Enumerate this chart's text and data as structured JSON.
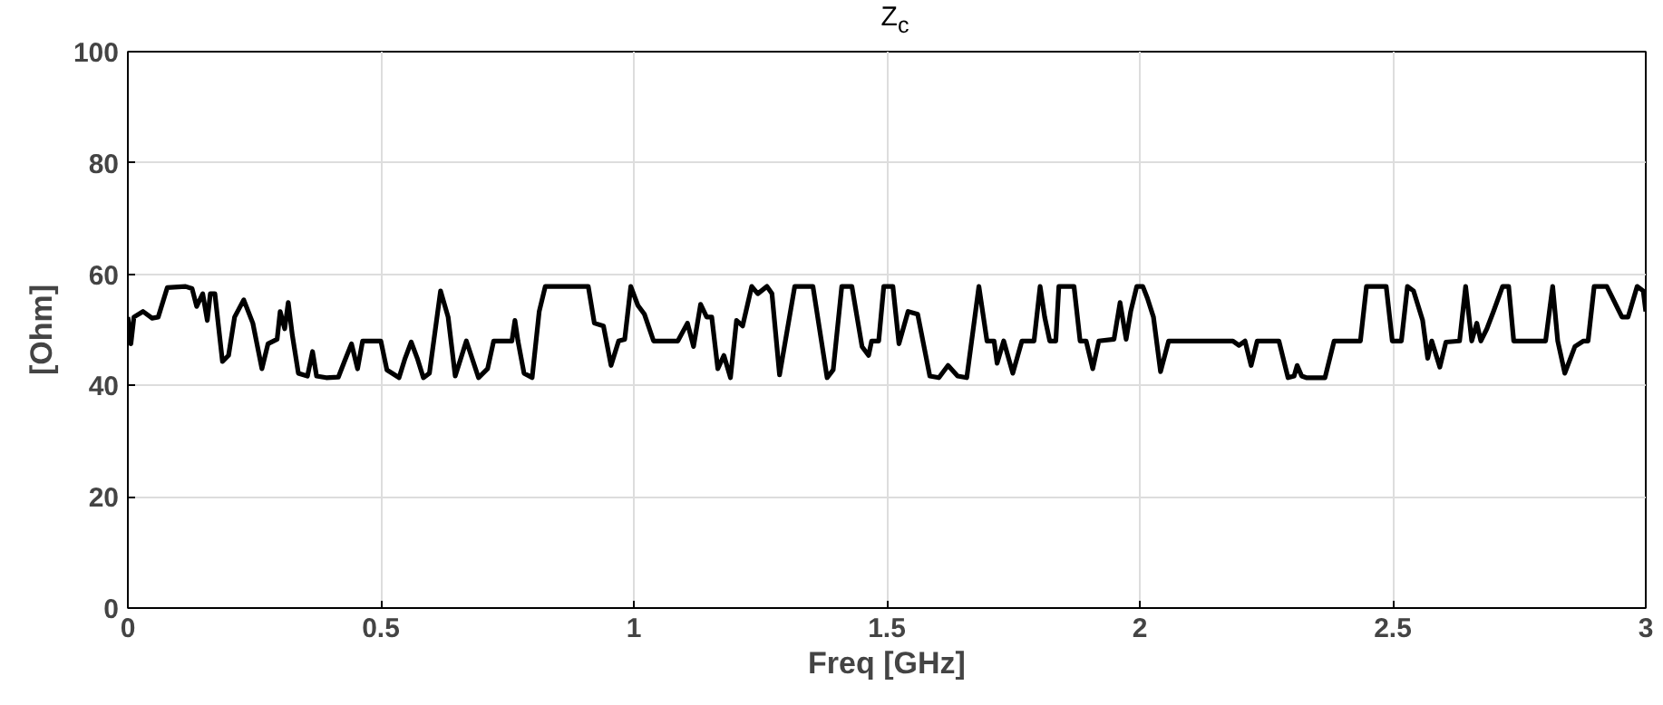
{
  "chart_data": {
    "type": "line",
    "title": "Z$_{c}$",
    "xlabel": "Freq [GHz]",
    "ylabel": "[Ohm]",
    "xlim": [
      0,
      3
    ],
    "ylim": [
      0,
      100
    ],
    "xticks": [
      0,
      0.5,
      1,
      1.5,
      2,
      2.5,
      3
    ],
    "yticks": [
      0,
      20,
      40,
      60,
      80,
      100
    ],
    "grid": true,
    "marker": "none",
    "line_style": "solid",
    "series": [
      {
        "color": "#000000",
        "x": [
          0,
          0.006,
          0.012,
          0.03,
          0.048,
          0.06,
          0.078,
          0.114,
          0.127,
          0.136,
          0.148,
          0.157,
          0.163,
          0.172,
          0.187,
          0.199,
          0.211,
          0.229,
          0.247,
          0.265,
          0.277,
          0.295,
          0.301,
          0.31,
          0.317,
          0.325,
          0.337,
          0.355,
          0.365,
          0.373,
          0.392,
          0.416,
          0.428,
          0.442,
          0.454,
          0.464,
          0.5,
          0.512,
          0.536,
          0.548,
          0.56,
          0.572,
          0.584,
          0.596,
          0.618,
          0.633,
          0.647,
          0.669,
          0.693,
          0.711,
          0.723,
          0.759,
          0.765,
          0.771,
          0.783,
          0.799,
          0.813,
          0.825,
          0.91,
          0.922,
          0.94,
          0.955,
          0.97,
          0.982,
          0.994,
          1.008,
          1.021,
          1.039,
          1.087,
          1.106,
          1.118,
          1.132,
          1.144,
          1.154,
          1.166,
          1.178,
          1.191,
          1.203,
          1.215,
          1.233,
          1.245,
          1.263,
          1.273,
          1.288,
          1.318,
          1.354,
          1.382,
          1.394,
          1.411,
          1.431,
          1.451,
          1.464,
          1.47,
          1.484,
          1.494,
          1.512,
          1.524,
          1.542,
          1.561,
          1.585,
          1.603,
          1.621,
          1.64,
          1.658,
          1.682,
          1.698,
          1.712,
          1.718,
          1.731,
          1.749,
          1.767,
          1.791,
          1.803,
          1.812,
          1.822,
          1.834,
          1.84,
          1.87,
          1.882,
          1.894,
          1.907,
          1.919,
          1.949,
          1.961,
          1.973,
          1.982,
          1.994,
          2.006,
          2.015,
          2.027,
          2.041,
          2.057,
          2.184,
          2.196,
          2.208,
          2.22,
          2.232,
          2.275,
          2.293,
          2.305,
          2.311,
          2.32,
          2.329,
          2.366,
          2.384,
          2.436,
          2.448,
          2.487,
          2.499,
          2.517,
          2.529,
          2.541,
          2.559,
          2.569,
          2.577,
          2.593,
          2.605,
          2.632,
          2.644,
          2.656,
          2.666,
          2.674,
          2.686,
          2.699,
          2.717,
          2.729,
          2.739,
          2.802,
          2.816,
          2.826,
          2.84,
          2.86,
          2.877,
          2.886,
          2.898,
          2.923,
          2.953,
          2.965,
          2.983,
          2.995,
          3.0
        ],
        "values": [
          52.3,
          47.5,
          52.3,
          53.3,
          52.1,
          52.3,
          57.6,
          57.8,
          57.4,
          54.2,
          56.5,
          51.7,
          56.5,
          56.5,
          44.3,
          45.4,
          52.3,
          55.4,
          51.2,
          43.0,
          47.5,
          48.3,
          53.3,
          50.2,
          54.9,
          49.1,
          42.2,
          41.7,
          46.1,
          41.7,
          41.4,
          41.5,
          44.3,
          47.5,
          43.0,
          48.0,
          48.0,
          42.8,
          41.4,
          44.9,
          47.8,
          44.9,
          41.4,
          42.2,
          57.0,
          52.3,
          41.7,
          48.0,
          41.4,
          43.0,
          48.0,
          48.0,
          51.7,
          48.0,
          42.2,
          41.4,
          53.3,
          57.8,
          57.8,
          51.2,
          50.7,
          43.6,
          48.0,
          48.3,
          57.8,
          54.4,
          52.8,
          48.0,
          48.0,
          51.2,
          47.0,
          54.6,
          52.3,
          52.3,
          43.0,
          45.4,
          41.4,
          51.7,
          50.7,
          57.8,
          56.5,
          57.8,
          56.5,
          41.9,
          57.8,
          57.8,
          41.4,
          42.8,
          57.8,
          57.8,
          47.0,
          45.4,
          48.0,
          48.0,
          57.8,
          57.8,
          47.5,
          53.3,
          52.8,
          41.7,
          41.4,
          43.6,
          41.7,
          41.4,
          57.8,
          48.0,
          48.0,
          44.0,
          48.0,
          42.2,
          48.0,
          48.0,
          57.8,
          52.3,
          48.0,
          48.0,
          57.8,
          57.8,
          48.0,
          48.0,
          43.0,
          48.0,
          48.3,
          54.9,
          48.3,
          53.3,
          57.8,
          57.8,
          55.7,
          52.3,
          42.5,
          48.0,
          48.0,
          47.2,
          48.0,
          43.6,
          48.0,
          48.0,
          41.4,
          41.7,
          43.6,
          41.7,
          41.4,
          41.4,
          48.0,
          48.0,
          57.8,
          57.8,
          48.0,
          48.0,
          57.8,
          57.0,
          51.7,
          44.9,
          48.0,
          43.3,
          47.8,
          48.0,
          57.8,
          48.0,
          51.2,
          48.0,
          50.2,
          53.3,
          57.8,
          57.8,
          48.0,
          48.0,
          57.8,
          48.0,
          42.2,
          47.0,
          48.0,
          48.0,
          57.8,
          57.8,
          52.3,
          52.3,
          57.8,
          57.0,
          53.3
        ]
      }
    ]
  }
}
